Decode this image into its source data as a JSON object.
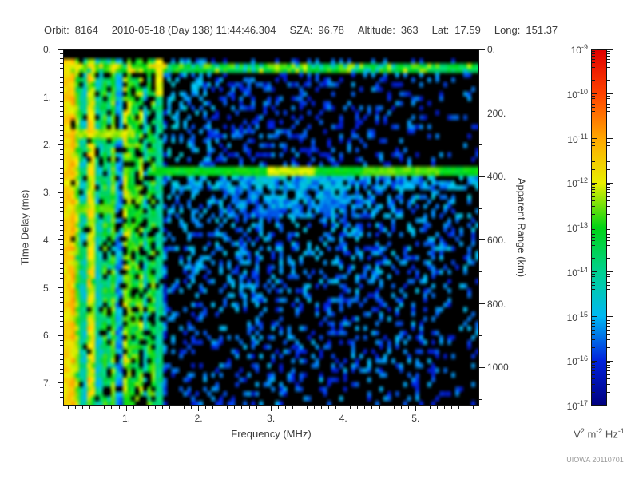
{
  "header": {
    "items": [
      {
        "label": "Orbit:",
        "value": "8164"
      },
      {
        "label": "",
        "value": "2010-05-18 (Day 138) 11:44:46.304"
      },
      {
        "label": "SZA:",
        "value": "96.78"
      },
      {
        "label": "Altitude:",
        "value": "363"
      },
      {
        "label": "Lat:",
        "value": "17.59"
      },
      {
        "label": "Long:",
        "value": "151.37"
      }
    ]
  },
  "chart_data": {
    "type": "heatmap",
    "subtype": "radar-sounder-ionogram-spectrogram",
    "xlabel": "Frequency (MHz)",
    "x_range": [
      0.127,
      5.88
    ],
    "x_major_ticks": [
      {
        "v": 1,
        "label": "1."
      },
      {
        "v": 2,
        "label": "2."
      },
      {
        "v": 3,
        "label": "3."
      },
      {
        "v": 4,
        "label": "4."
      },
      {
        "v": 5,
        "label": "5."
      }
    ],
    "x_minor_step": 0.1,
    "ylabel_left": "Time Delay (ms)",
    "y_range_ms": [
      0,
      7.47
    ],
    "y_major_ticks": [
      {
        "v": 0,
        "label": "0."
      },
      {
        "v": 1,
        "label": "1."
      },
      {
        "v": 2,
        "label": "2."
      },
      {
        "v": 3,
        "label": "3."
      },
      {
        "v": 4,
        "label": "4."
      },
      {
        "v": 5,
        "label": "5."
      },
      {
        "v": 6,
        "label": "6."
      },
      {
        "v": 7,
        "label": "7."
      }
    ],
    "y_minor_step_ms": 0.1,
    "ylabel_right": "Apparent Range (km)",
    "y_right_range_km": [
      0,
      1120
    ],
    "y_right_major_ticks": [
      {
        "v": 0,
        "label": "0."
      },
      {
        "v": 200,
        "label": "200."
      },
      {
        "v": 400,
        "label": "400."
      },
      {
        "v": 600,
        "label": "600."
      },
      {
        "v": 800,
        "label": "800."
      },
      {
        "v": 1000,
        "label": "1000."
      }
    ],
    "y_right_minor_step_km": 100,
    "colorbar": {
      "tick_exponents": [
        -9,
        -10,
        -11,
        -12,
        -13,
        -14,
        -15,
        -16,
        -17
      ],
      "label_parts": [
        {
          "text": "V",
          "sup": "2"
        },
        {
          "text": "m",
          "sup": "-2"
        },
        {
          "text": "Hz",
          "sup": "-1"
        }
      ],
      "stops": [
        [
          0.0,
          "#000080"
        ],
        [
          0.125,
          "#0022dd"
        ],
        [
          0.25,
          "#00b8f2"
        ],
        [
          0.375,
          "#00d190"
        ],
        [
          0.5,
          "#00d414"
        ],
        [
          0.625,
          "#e9ef00"
        ],
        [
          0.75,
          "#ffa800"
        ],
        [
          0.875,
          "#ff4400"
        ],
        [
          1.0,
          "#e00000"
        ]
      ]
    },
    "credit": "UIOWA 20110701",
    "render": {
      "seed": 20110701,
      "grid": [
        104,
        76
      ],
      "features": {
        "top_black_ms": 0.24,
        "top_band": {
          "t0": 0.26,
          "t1": 0.47,
          "base": 0.4,
          "jitter": 0.1,
          "green_p": 0.3,
          "green_add": 0.12,
          "dip_p": 0.1,
          "dip_v": 0.3,
          "left_f": 1.6,
          "left_add": 0.08,
          "left_yellow": 0.64
        },
        "left_region": {
          "f_max": 1.55,
          "cover": 0.6,
          "cover_edge": 0.4,
          "base": 0.12,
          "col_w": 0.38,
          "edge_w": 0.22,
          "far_left_f": 0.26,
          "far_left_min": 0.52
        },
        "stripes": [
          [
            0.18,
            0.045,
            0.66
          ],
          [
            0.31,
            0.035,
            0.58
          ],
          [
            0.55,
            0.045,
            0.62
          ],
          [
            0.82,
            0.035,
            0.55
          ],
          [
            1.05,
            0.03,
            0.5
          ],
          [
            1.47,
            0.05,
            0.36
          ]
        ],
        "stripe_top": {
          "f": 1.47,
          "halfw": 0.05,
          "t_max": 0.95,
          "v": 0.6
        },
        "h_lines": [
          [
            1.68,
            1.86,
            1.15,
            0.55
          ],
          [
            3.28,
            3.45,
            0.85,
            0.52
          ]
        ],
        "surface_band": {
          "t0": 2.49,
          "t1": 2.67,
          "f_min": 1.32,
          "base": 0.46,
          "jitter": 0.06,
          "bright": [
            [
              2.95,
              3.6,
              0.58
            ],
            [
              4.3,
              5.3,
              0.52
            ]
          ]
        },
        "below_glow": {
          "t0": 2.67,
          "t1": 3.55,
          "f0": 2.45,
          "f1": 4.25,
          "p": 0.6,
          "v0": 0.16,
          "v1": 0.2
        },
        "echo": {
          "t0": 2.67,
          "t1": 2.95,
          "f_min": 1.6,
          "p": 0.5,
          "v0": 0.14,
          "v1": 0.16
        },
        "scatter": {
          "mid_p0": 0.4,
          "mid_slope": 0.05,
          "mid_v0": 0.08,
          "mid_v1": 0.15,
          "cyan_bonus": 0.12,
          "below_p": 0.27,
          "below_near": 0.2,
          "below_v0": 0.09,
          "below_v1": 0.16,
          "right_taper_f": 5.25,
          "right_taper": 0.65
        }
      }
    }
  }
}
